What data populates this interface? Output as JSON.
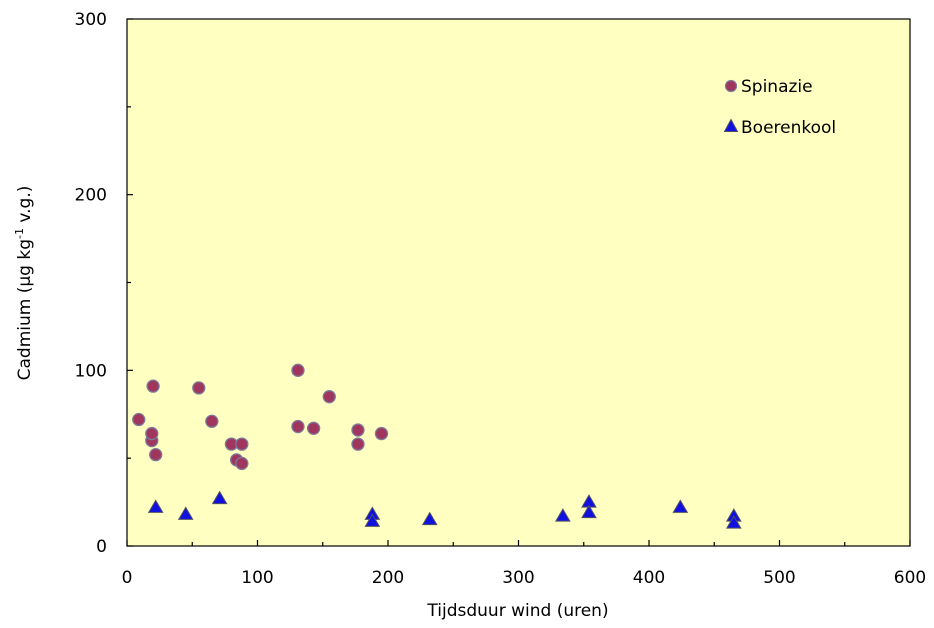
{
  "chart_data": {
    "type": "scatter",
    "xlabel": "Tijdsduur wind (uren)",
    "ylabel": {
      "prefix": "Cadmium (µg kg",
      "superscript": "-1",
      "suffix": " v.g.)"
    },
    "xlim": [
      0,
      600
    ],
    "ylim": [
      0,
      300
    ],
    "x_ticks": [
      "0",
      "100",
      "200",
      "300",
      "400",
      "500",
      "600"
    ],
    "y_ticks": [
      "0",
      "100",
      "200",
      "300"
    ],
    "grid": false,
    "legend_position": "top-right",
    "plot_background": "#FFFFC2",
    "series": [
      {
        "name": "Spinazie",
        "marker": "circle",
        "color": "#A0355E",
        "edge_color": "#7A7A9A",
        "points": [
          [
            9,
            72
          ],
          [
            19,
            60
          ],
          [
            19,
            64
          ],
          [
            20,
            91
          ],
          [
            22,
            52
          ],
          [
            55,
            90
          ],
          [
            65,
            71
          ],
          [
            80,
            58
          ],
          [
            84,
            49
          ],
          [
            88,
            47
          ],
          [
            88,
            58
          ],
          [
            131,
            100
          ],
          [
            131,
            68
          ],
          [
            143,
            67
          ],
          [
            155,
            85
          ],
          [
            177,
            66
          ],
          [
            177,
            58
          ],
          [
            195,
            64
          ]
        ]
      },
      {
        "name": "Boerenkool",
        "marker": "triangle",
        "color": "#1010E0",
        "edge_color": "#505060",
        "points": [
          [
            22,
            22
          ],
          [
            45,
            18
          ],
          [
            71,
            27
          ],
          [
            188,
            18
          ],
          [
            188,
            14
          ],
          [
            232,
            15
          ],
          [
            334,
            17
          ],
          [
            354,
            25
          ],
          [
            354,
            19
          ],
          [
            424,
            22
          ],
          [
            465,
            17
          ],
          [
            465,
            13
          ]
        ]
      }
    ]
  }
}
